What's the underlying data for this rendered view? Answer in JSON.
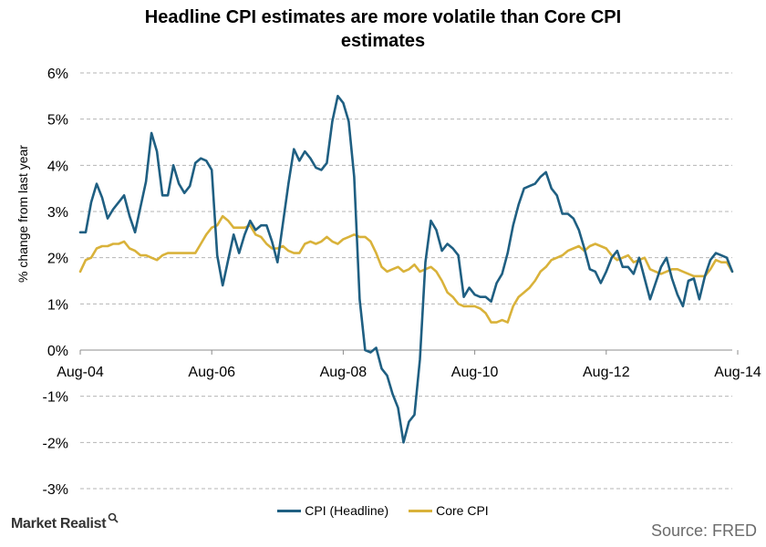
{
  "title": {
    "line1": "Headline  CPI estimates  are more  volatile  than  Core CPI",
    "line2": "estimates"
  },
  "source": "Source: FRED",
  "brand": "Market Realist",
  "chart_data": {
    "type": "line",
    "title": "Headline  CPI estimates  are more  volatile  than  Core CPI estimates",
    "ylabel": "% change from last year",
    "xlabel": "",
    "ylim": [
      -3,
      6
    ],
    "yticks": [
      -3,
      -2,
      -1,
      0,
      1,
      2,
      3,
      4,
      5,
      6
    ],
    "ytick_labels": [
      "-3%",
      "-2%",
      "-1%",
      "0%",
      "1%",
      "2%",
      "3%",
      "4%",
      "5%",
      "6%"
    ],
    "xlim": [
      "2004-08",
      "2014-08"
    ],
    "xtick_labels": [
      "Aug-04",
      "Aug-06",
      "Aug-08",
      "Aug-10",
      "Aug-12",
      "Aug-14"
    ],
    "grid": "horizontal dashed",
    "legend_position": "bottom-center",
    "x_start": "2004-08",
    "x_frequency": "monthly",
    "series": [
      {
        "name": "CPI (Headline)",
        "color": "#1f5f82",
        "values": [
          2.55,
          2.55,
          3.2,
          3.6,
          3.3,
          2.85,
          3.05,
          3.2,
          3.35,
          2.9,
          2.55,
          3.1,
          3.65,
          4.7,
          4.3,
          3.35,
          3.35,
          4.0,
          3.6,
          3.4,
          3.55,
          4.05,
          4.15,
          4.1,
          3.9,
          2.05,
          1.4,
          1.95,
          2.5,
          2.1,
          2.5,
          2.8,
          2.6,
          2.7,
          2.7,
          2.35,
          1.9,
          2.75,
          3.6,
          4.35,
          4.1,
          4.3,
          4.15,
          3.95,
          3.9,
          4.05,
          4.95,
          5.5,
          5.35,
          4.95,
          3.75,
          1.1,
          0.0,
          -0.05,
          0.05,
          -0.4,
          -0.55,
          -0.95,
          -1.25,
          -2.0,
          -1.55,
          -1.4,
          -0.2,
          1.9,
          2.8,
          2.6,
          2.15,
          2.3,
          2.2,
          2.05,
          1.15,
          1.35,
          1.2,
          1.15,
          1.15,
          1.05,
          1.45,
          1.65,
          2.1,
          2.7,
          3.15,
          3.5,
          3.55,
          3.6,
          3.75,
          3.85,
          3.5,
          3.35,
          2.95,
          2.95,
          2.85,
          2.6,
          2.2,
          1.75,
          1.7,
          1.45,
          1.7,
          2.0,
          2.15,
          1.8,
          1.8,
          1.65,
          2.0,
          1.55,
          1.1,
          1.45,
          1.8,
          2.0,
          1.55,
          1.2,
          0.95,
          1.5,
          1.55,
          1.1,
          1.6,
          1.95,
          2.1,
          2.05,
          2.0,
          1.7
        ]
      },
      {
        "name": "Core CPI",
        "color": "#d9b23a",
        "values": [
          1.7,
          1.95,
          2.0,
          2.2,
          2.25,
          2.25,
          2.3,
          2.3,
          2.35,
          2.2,
          2.15,
          2.05,
          2.05,
          2.0,
          1.95,
          2.05,
          2.1,
          2.1,
          2.1,
          2.1,
          2.1,
          2.1,
          2.3,
          2.5,
          2.65,
          2.7,
          2.9,
          2.8,
          2.65,
          2.65,
          2.65,
          2.7,
          2.5,
          2.45,
          2.3,
          2.2,
          2.2,
          2.25,
          2.15,
          2.1,
          2.1,
          2.3,
          2.35,
          2.3,
          2.35,
          2.45,
          2.35,
          2.3,
          2.4,
          2.45,
          2.5,
          2.45,
          2.45,
          2.35,
          2.1,
          1.8,
          1.7,
          1.75,
          1.8,
          1.7,
          1.75,
          1.85,
          1.7,
          1.75,
          1.8,
          1.7,
          1.5,
          1.25,
          1.15,
          1.0,
          0.95,
          0.95,
          0.95,
          0.9,
          0.8,
          0.6,
          0.6,
          0.65,
          0.6,
          0.95,
          1.15,
          1.25,
          1.35,
          1.5,
          1.7,
          1.8,
          1.95,
          2.0,
          2.05,
          2.15,
          2.2,
          2.25,
          2.15,
          2.25,
          2.3,
          2.25,
          2.2,
          2.05,
          1.95,
          2.0,
          2.05,
          1.9,
          1.95,
          2.0,
          1.75,
          1.7,
          1.65,
          1.7,
          1.75,
          1.75,
          1.7,
          1.65,
          1.6,
          1.6,
          1.6,
          1.75,
          1.95,
          1.9,
          1.9,
          1.7
        ]
      }
    ]
  }
}
